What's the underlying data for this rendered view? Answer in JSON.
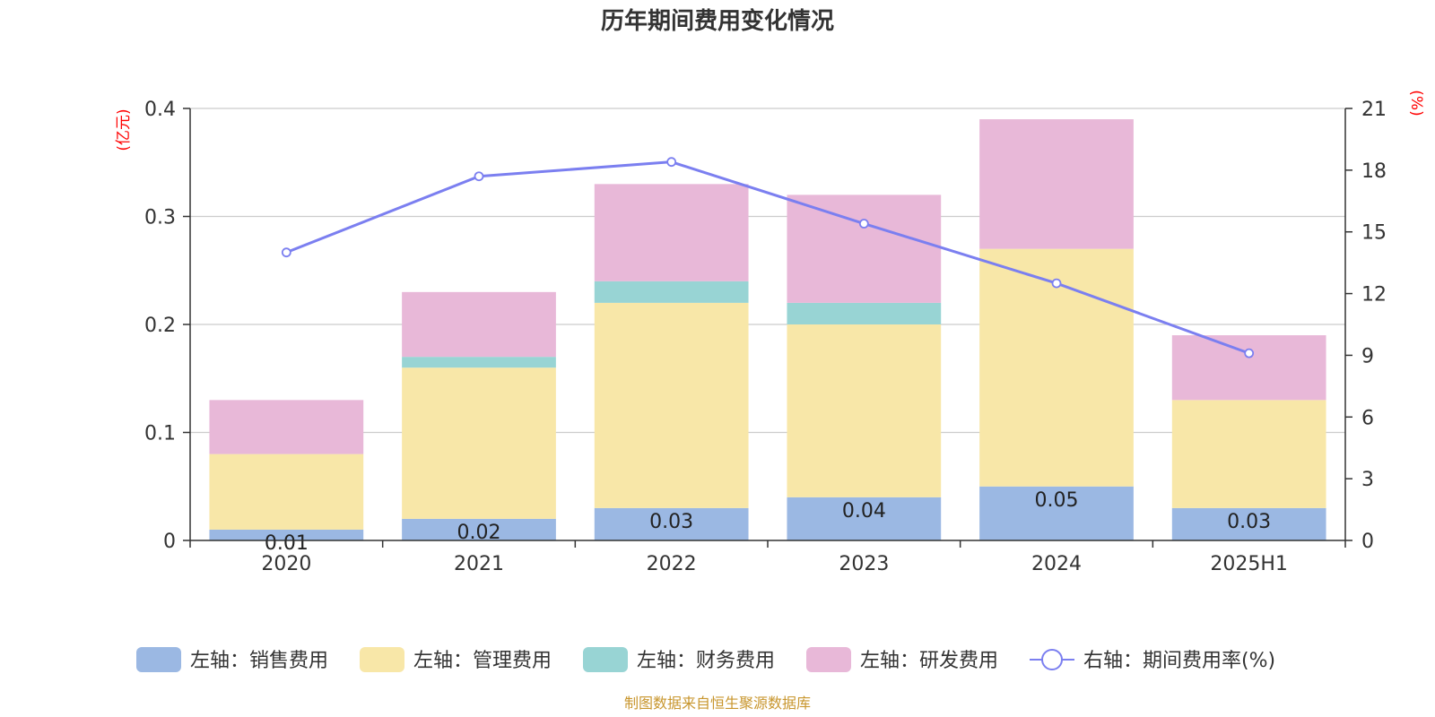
{
  "chart_data": {
    "type": "bar",
    "title": "历年期间费用变化情况",
    "categories": [
      "2020",
      "2021",
      "2022",
      "2023",
      "2024",
      "2025H1"
    ],
    "left_axis": {
      "unit": "(亿元)",
      "ylim": [
        0,
        0.4
      ],
      "ticks": [
        0,
        0.1,
        0.2,
        0.3,
        0.4
      ]
    },
    "right_axis": {
      "unit": "(%)",
      "ylim": [
        0,
        21
      ],
      "ticks": [
        0,
        3,
        6,
        9,
        12,
        15,
        18,
        21
      ]
    },
    "series": [
      {
        "name": "左轴：销售费用",
        "type": "bar",
        "stack": true,
        "color": "#9bb8e3",
        "values": [
          0.01,
          0.02,
          0.03,
          0.04,
          0.05,
          0.03
        ],
        "labels": [
          "0.01",
          "0.02",
          "0.03",
          "0.04",
          "0.05",
          "0.03"
        ]
      },
      {
        "name": "左轴：管理费用",
        "type": "bar",
        "stack": true,
        "color": "#f8e7a8",
        "values": [
          0.07,
          0.14,
          0.19,
          0.16,
          0.22,
          0.1
        ]
      },
      {
        "name": "左轴：财务费用",
        "type": "bar",
        "stack": true,
        "color": "#98d4d4",
        "values": [
          0.0,
          0.01,
          0.02,
          0.02,
          0.0,
          0.0
        ]
      },
      {
        "name": "左轴：研发费用",
        "type": "bar",
        "stack": true,
        "color": "#e8b8d8",
        "values": [
          0.05,
          0.06,
          0.09,
          0.1,
          0.12,
          0.06
        ]
      },
      {
        "name": "右轴：期间费用率(%)",
        "type": "line",
        "axis": "right",
        "color": "#7b7ff0",
        "values": [
          14.0,
          17.7,
          18.4,
          15.4,
          12.5,
          9.1
        ]
      }
    ],
    "grid": true,
    "legend_position": "bottom"
  },
  "source": "制图数据来自恒生聚源数据库"
}
